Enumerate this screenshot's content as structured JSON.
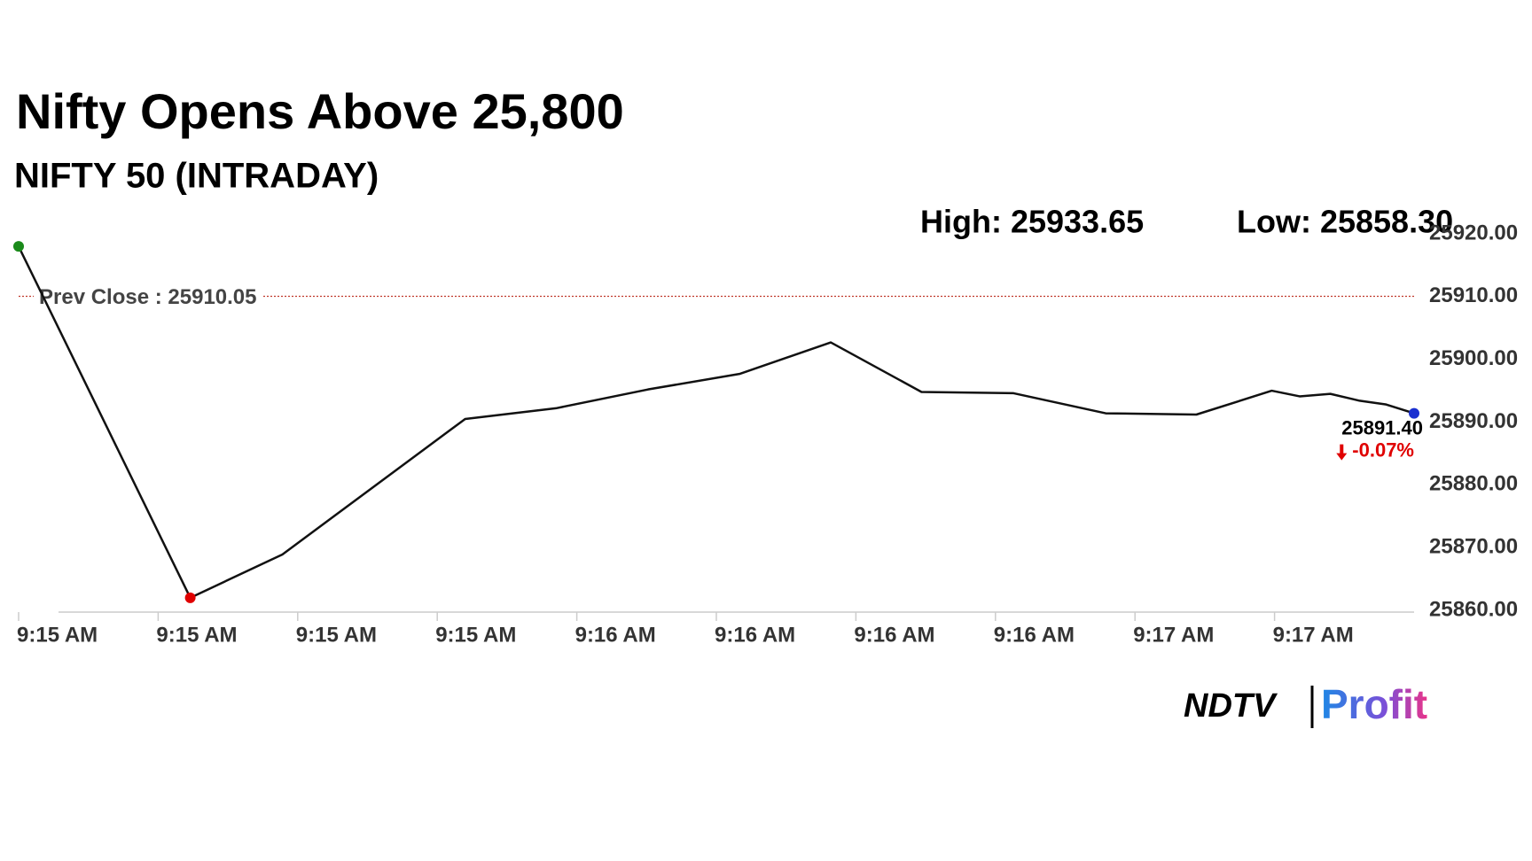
{
  "chart_data": {
    "type": "line",
    "title": "Nifty Opens Above 25,800",
    "subtitle": "NIFTY 50 (INTRADAY)",
    "high_label": "High: 25933.65",
    "low_label": "Low: 25858.30",
    "prev_close": {
      "value": 25910.05,
      "label": "Prev Close : 25910.05"
    },
    "last_label": {
      "value": 25891.4,
      "label": "25891.40"
    },
    "change_label": "-0.07%",
    "logo": [
      "NDTV",
      "Profit"
    ],
    "x": [
      0,
      1.23,
      1.89,
      3.2,
      3.85,
      4.51,
      5.17,
      5.82,
      6.47,
      7.13,
      7.79,
      8.44,
      8.98,
      9.18,
      9.4,
      9.61,
      9.8,
      10
    ],
    "series": [
      {
        "name": "NIFTY 50",
        "color": "#111111",
        "values": [
          25918,
          25862,
          25868.9,
          25890.5,
          25892.2,
          25895.2,
          25897.7,
          25902.7,
          25894.8,
          25894.6,
          25891.4,
          25891.2,
          25895,
          25894.1,
          25894.5,
          25893.4,
          25892.8,
          25891.4
        ]
      }
    ],
    "start_color": "#1a8a1a",
    "low_color": "#e00000",
    "end_color": "#1a2fd0",
    "prev_close_color": "#c0392b",
    "xlim": [
      0,
      10
    ],
    "xticks": [
      {
        "value": 0,
        "label": "9:15 AM"
      },
      {
        "value": 1,
        "label": "9:15 AM"
      },
      {
        "value": 2,
        "label": "9:15 AM"
      },
      {
        "value": 3,
        "label": "9:15 AM"
      },
      {
        "value": 4,
        "label": "9:16 AM"
      },
      {
        "value": 5,
        "label": "9:16 AM"
      },
      {
        "value": 6,
        "label": "9:16 AM"
      },
      {
        "value": 7,
        "label": "9:16 AM"
      },
      {
        "value": 8,
        "label": "9:17 AM"
      },
      {
        "value": 9,
        "label": "9:17 AM"
      }
    ],
    "ylim": [
      25860,
      25920
    ],
    "yticks": [
      {
        "value": 25860,
        "label": "25860.00"
      },
      {
        "value": 25870,
        "label": "25870.00"
      },
      {
        "value": 25880,
        "label": "25880.00"
      },
      {
        "value": 25890,
        "label": "25890.00"
      },
      {
        "value": 25900,
        "label": "25900.00"
      },
      {
        "value": 25910,
        "label": "25910.00"
      },
      {
        "value": 25920,
        "label": "25920.00"
      }
    ]
  }
}
